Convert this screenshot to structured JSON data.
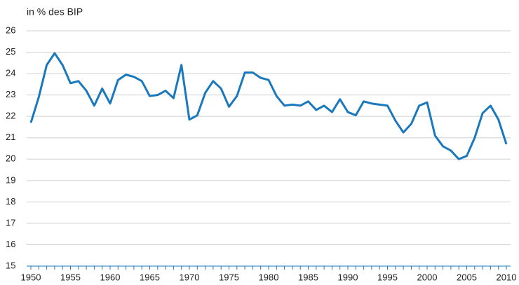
{
  "chart_data": {
    "type": "line",
    "y_label": "in % des BIP",
    "x": [
      1950,
      1951,
      1952,
      1953,
      1954,
      1955,
      1956,
      1957,
      1958,
      1959,
      1960,
      1961,
      1962,
      1963,
      1964,
      1965,
      1966,
      1967,
      1968,
      1969,
      1970,
      1971,
      1972,
      1973,
      1974,
      1975,
      1976,
      1977,
      1978,
      1979,
      1980,
      1981,
      1982,
      1983,
      1984,
      1985,
      1986,
      1987,
      1988,
      1989,
      1990,
      1991,
      1992,
      1993,
      1994,
      1995,
      1996,
      1997,
      1998,
      1999,
      2000,
      2001,
      2002,
      2003,
      2004,
      2005,
      2006,
      2007,
      2008,
      2009,
      2010
    ],
    "series": [
      {
        "color": "#1a78bd",
        "values": [
          21.7,
          22.9,
          24.4,
          24.95,
          24.4,
          23.55,
          23.65,
          23.2,
          22.5,
          23.3,
          22.6,
          23.7,
          23.95,
          23.85,
          23.65,
          22.95,
          23.0,
          23.2,
          22.85,
          24.4,
          21.85,
          22.05,
          23.1,
          23.65,
          23.3,
          22.45,
          22.95,
          24.05,
          24.05,
          23.8,
          23.7,
          22.95,
          22.5,
          22.55,
          22.5,
          22.7,
          22.3,
          22.5,
          22.2,
          22.8,
          22.2,
          22.05,
          22.7,
          22.6,
          22.55,
          22.5,
          21.8,
          21.25,
          21.65,
          22.5,
          22.65,
          21.1,
          20.6,
          20.4,
          20.0,
          20.15,
          21.0,
          22.15,
          22.5,
          21.85,
          20.7
        ]
      }
    ],
    "xlim": [
      1950,
      2010
    ],
    "xticks": [
      1950,
      1955,
      1960,
      1965,
      1970,
      1975,
      1980,
      1985,
      1990,
      1995,
      2000,
      2005,
      2010
    ],
    "ylim": [
      15,
      26
    ],
    "yticks": [
      15,
      16,
      17,
      18,
      19,
      20,
      21,
      22,
      23,
      24,
      25,
      26
    ],
    "grid": true
  }
}
